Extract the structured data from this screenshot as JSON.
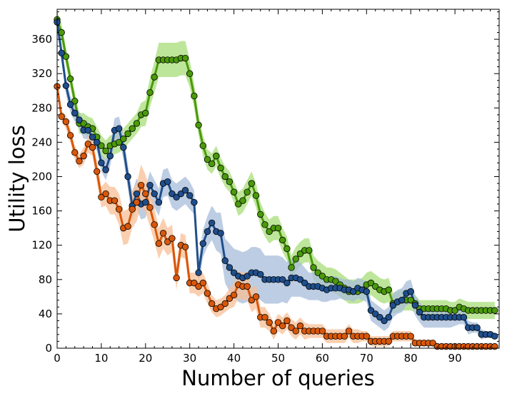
{
  "chart_data": {
    "type": "line",
    "xlabel": "Number of queries",
    "ylabel": "Utility loss",
    "xlim": [
      0,
      100
    ],
    "ylim": [
      0,
      395
    ],
    "x_ticks": [
      0,
      10,
      20,
      30,
      40,
      50,
      60,
      70,
      80,
      90
    ],
    "y_ticks": [
      0,
      40,
      80,
      120,
      160,
      200,
      240,
      280,
      320,
      360
    ],
    "grid": false,
    "legend": "none",
    "x": [
      0,
      1,
      2,
      3,
      4,
      5,
      6,
      7,
      8,
      9,
      10,
      11,
      12,
      13,
      14,
      15,
      16,
      17,
      18,
      19,
      20,
      21,
      22,
      23,
      24,
      25,
      26,
      27,
      28,
      29,
      30,
      31,
      32,
      33,
      34,
      35,
      36,
      37,
      38,
      39,
      40,
      41,
      42,
      43,
      44,
      45,
      46,
      47,
      48,
      49,
      50,
      51,
      52,
      53,
      54,
      55,
      56,
      57,
      58,
      59,
      60,
      61,
      62,
      63,
      64,
      65,
      66,
      67,
      68,
      69,
      70,
      71,
      72,
      73,
      74,
      75,
      76,
      77,
      78,
      79,
      80,
      81,
      82,
      83,
      84,
      85,
      86,
      87,
      88,
      89,
      90,
      91,
      92,
      93,
      94,
      95,
      96,
      97,
      98,
      99
    ],
    "series": [
      {
        "color": "#4a9a0a",
        "band_color": "#a8de7a",
        "values": [
          383,
          368,
          340,
          314,
          288,
          262,
          262,
          258,
          256,
          246,
          236,
          230,
          236,
          238,
          240,
          244,
          250,
          256,
          262,
          272,
          274,
          298,
          316,
          336,
          336,
          336,
          336,
          336,
          338,
          338,
          320,
          294,
          260,
          236,
          220,
          215,
          224,
          210,
          200,
          194,
          182,
          168,
          172,
          182,
          192,
          178,
          156,
          144,
          136,
          140,
          140,
          126,
          116,
          94,
          104,
          110,
          114,
          114,
          94,
          88,
          84,
          80,
          80,
          78,
          74,
          70,
          66,
          66,
          66,
          68,
          74,
          76,
          72,
          68,
          66,
          68,
          52,
          54,
          56,
          56,
          56,
          52,
          46,
          46,
          46,
          46,
          46,
          46,
          46,
          44,
          44,
          48,
          46,
          44,
          44,
          44,
          44,
          44,
          44,
          44
        ],
        "band": [
          10,
          10,
          10,
          10,
          10,
          12,
          12,
          12,
          12,
          12,
          12,
          12,
          12,
          12,
          12,
          12,
          12,
          12,
          12,
          14,
          15,
          17,
          18,
          20,
          20,
          20,
          20,
          20,
          20,
          20,
          16,
          14,
          12,
          12,
          12,
          12,
          12,
          12,
          12,
          12,
          12,
          14,
          14,
          14,
          14,
          14,
          14,
          14,
          14,
          14,
          14,
          14,
          14,
          14,
          14,
          14,
          14,
          14,
          14,
          14,
          14,
          14,
          14,
          14,
          14,
          14,
          14,
          14,
          14,
          14,
          14,
          14,
          14,
          14,
          14,
          14,
          12,
          12,
          12,
          12,
          12,
          10,
          10,
          10,
          10,
          10,
          10,
          10,
          10,
          10,
          10,
          10,
          10,
          10,
          10,
          10,
          10,
          10,
          10,
          10
        ]
      },
      {
        "color": "#1f4e8c",
        "band_color": "#a7bcd9",
        "values": [
          380,
          344,
          306,
          284,
          274,
          266,
          254,
          254,
          246,
          240,
          216,
          208,
          224,
          254,
          256,
          234,
          200,
          166,
          180,
          168,
          170,
          190,
          180,
          170,
          192,
          194,
          180,
          176,
          180,
          184,
          178,
          170,
          88,
          122,
          136,
          146,
          136,
          134,
          102,
          94,
          88,
          84,
          82,
          84,
          88,
          88,
          86,
          80,
          80,
          80,
          80,
          80,
          76,
          82,
          82,
          80,
          76,
          72,
          72,
          72,
          70,
          68,
          70,
          70,
          70,
          68,
          68,
          66,
          70,
          68,
          66,
          44,
          40,
          36,
          32,
          36,
          50,
          54,
          56,
          64,
          66,
          50,
          42,
          36,
          36,
          36,
          36,
          36,
          36,
          36,
          36,
          36,
          36,
          24,
          24,
          24,
          16,
          16,
          16,
          14
        ],
        "band": [
          10,
          10,
          10,
          10,
          10,
          10,
          10,
          10,
          10,
          10,
          10,
          12,
          12,
          14,
          14,
          14,
          14,
          16,
          18,
          18,
          18,
          16,
          16,
          16,
          16,
          16,
          16,
          16,
          16,
          16,
          16,
          14,
          14,
          16,
          18,
          20,
          22,
          24,
          26,
          28,
          28,
          30,
          30,
          30,
          30,
          30,
          30,
          28,
          28,
          28,
          28,
          26,
          24,
          22,
          22,
          20,
          18,
          16,
          16,
          16,
          16,
          14,
          14,
          14,
          12,
          12,
          12,
          12,
          12,
          12,
          12,
          12,
          12,
          12,
          12,
          12,
          14,
          14,
          14,
          14,
          14,
          12,
          12,
          12,
          12,
          12,
          12,
          12,
          12,
          12,
          10,
          8,
          8,
          8,
          6,
          6,
          6,
          4,
          4,
          4
        ]
      },
      {
        "color": "#d9570a",
        "band_color": "#f8bf95",
        "values": [
          305,
          270,
          264,
          248,
          228,
          218,
          224,
          238,
          234,
          206,
          176,
          180,
          172,
          172,
          162,
          140,
          142,
          162,
          170,
          190,
          180,
          164,
          144,
          122,
          134,
          124,
          128,
          82,
          120,
          118,
          76,
          76,
          72,
          76,
          64,
          52,
          46,
          48,
          52,
          58,
          62,
          74,
          72,
          72,
          56,
          60,
          36,
          36,
          30,
          20,
          30,
          26,
          32,
          24,
          20,
          26,
          20,
          20,
          20,
          20,
          20,
          14,
          14,
          14,
          14,
          14,
          20,
          14,
          14,
          14,
          14,
          8,
          8,
          8,
          8,
          8,
          14,
          14,
          14,
          14,
          14,
          6,
          6,
          6,
          6,
          6,
          2,
          2,
          2,
          2,
          2,
          2,
          2,
          2,
          2,
          2,
          2,
          2,
          2,
          2
        ],
        "band": [
          6,
          6,
          8,
          8,
          8,
          8,
          10,
          10,
          10,
          12,
          12,
          14,
          16,
          16,
          18,
          20,
          20,
          22,
          22,
          24,
          22,
          22,
          20,
          18,
          18,
          16,
          16,
          14,
          14,
          14,
          12,
          12,
          12,
          12,
          12,
          10,
          10,
          10,
          10,
          12,
          14,
          16,
          16,
          16,
          14,
          14,
          12,
          12,
          10,
          10,
          10,
          10,
          10,
          10,
          10,
          10,
          10,
          8,
          8,
          8,
          8,
          8,
          8,
          8,
          8,
          8,
          8,
          8,
          8,
          6,
          6,
          6,
          6,
          6,
          6,
          6,
          6,
          6,
          6,
          6,
          6,
          4,
          4,
          4,
          4,
          4,
          2,
          2,
          2,
          2,
          2,
          2,
          2,
          2,
          2,
          2,
          2,
          2,
          2,
          2
        ]
      }
    ]
  }
}
